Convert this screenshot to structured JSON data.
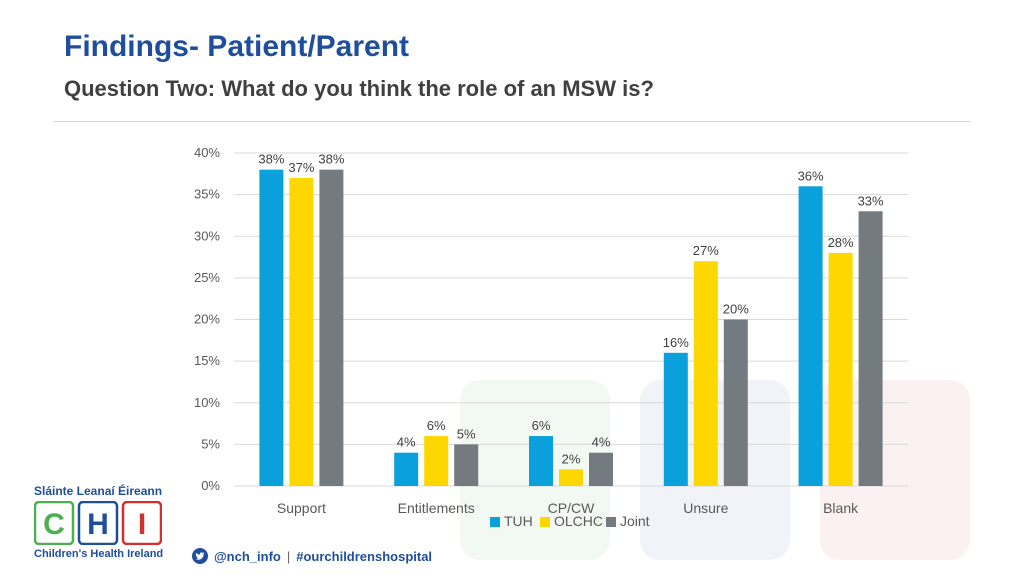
{
  "header": {
    "title": "Findings- Patient/Parent",
    "subtitle": "Question Two: What do you think the role of an MSW is?"
  },
  "chart_data": {
    "type": "bar",
    "categories": [
      "Support",
      "Entitlements",
      "CP/CW",
      "Unsure",
      "Blank"
    ],
    "series": [
      {
        "name": "TUH",
        "values": [
          38,
          4,
          6,
          16,
          36
        ],
        "color": "#0aa0dc"
      },
      {
        "name": "OLCHC",
        "values": [
          37,
          6,
          2,
          27,
          28
        ],
        "color": "#ffd700"
      },
      {
        "name": "Joint",
        "values": [
          38,
          5,
          4,
          20,
          33
        ],
        "color": "#737b80"
      }
    ],
    "y_ticks": [
      "0%",
      "5%",
      "10%",
      "15%",
      "20%",
      "25%",
      "30%",
      "35%",
      "40%"
    ],
    "ylim": [
      0,
      40
    ],
    "unit": "%",
    "grid": true,
    "legend": "bottom"
  },
  "footer": {
    "logo_top": "Sláinte Leanaí Éireann",
    "logo_letters": [
      "C",
      "H",
      "I"
    ],
    "logo_bottom": "Children's Health Ireland",
    "handle": "@nch_info",
    "separator": "|",
    "hashtag": "#ourchildrenshospital"
  },
  "icons": [
    "twitter-icon"
  ]
}
